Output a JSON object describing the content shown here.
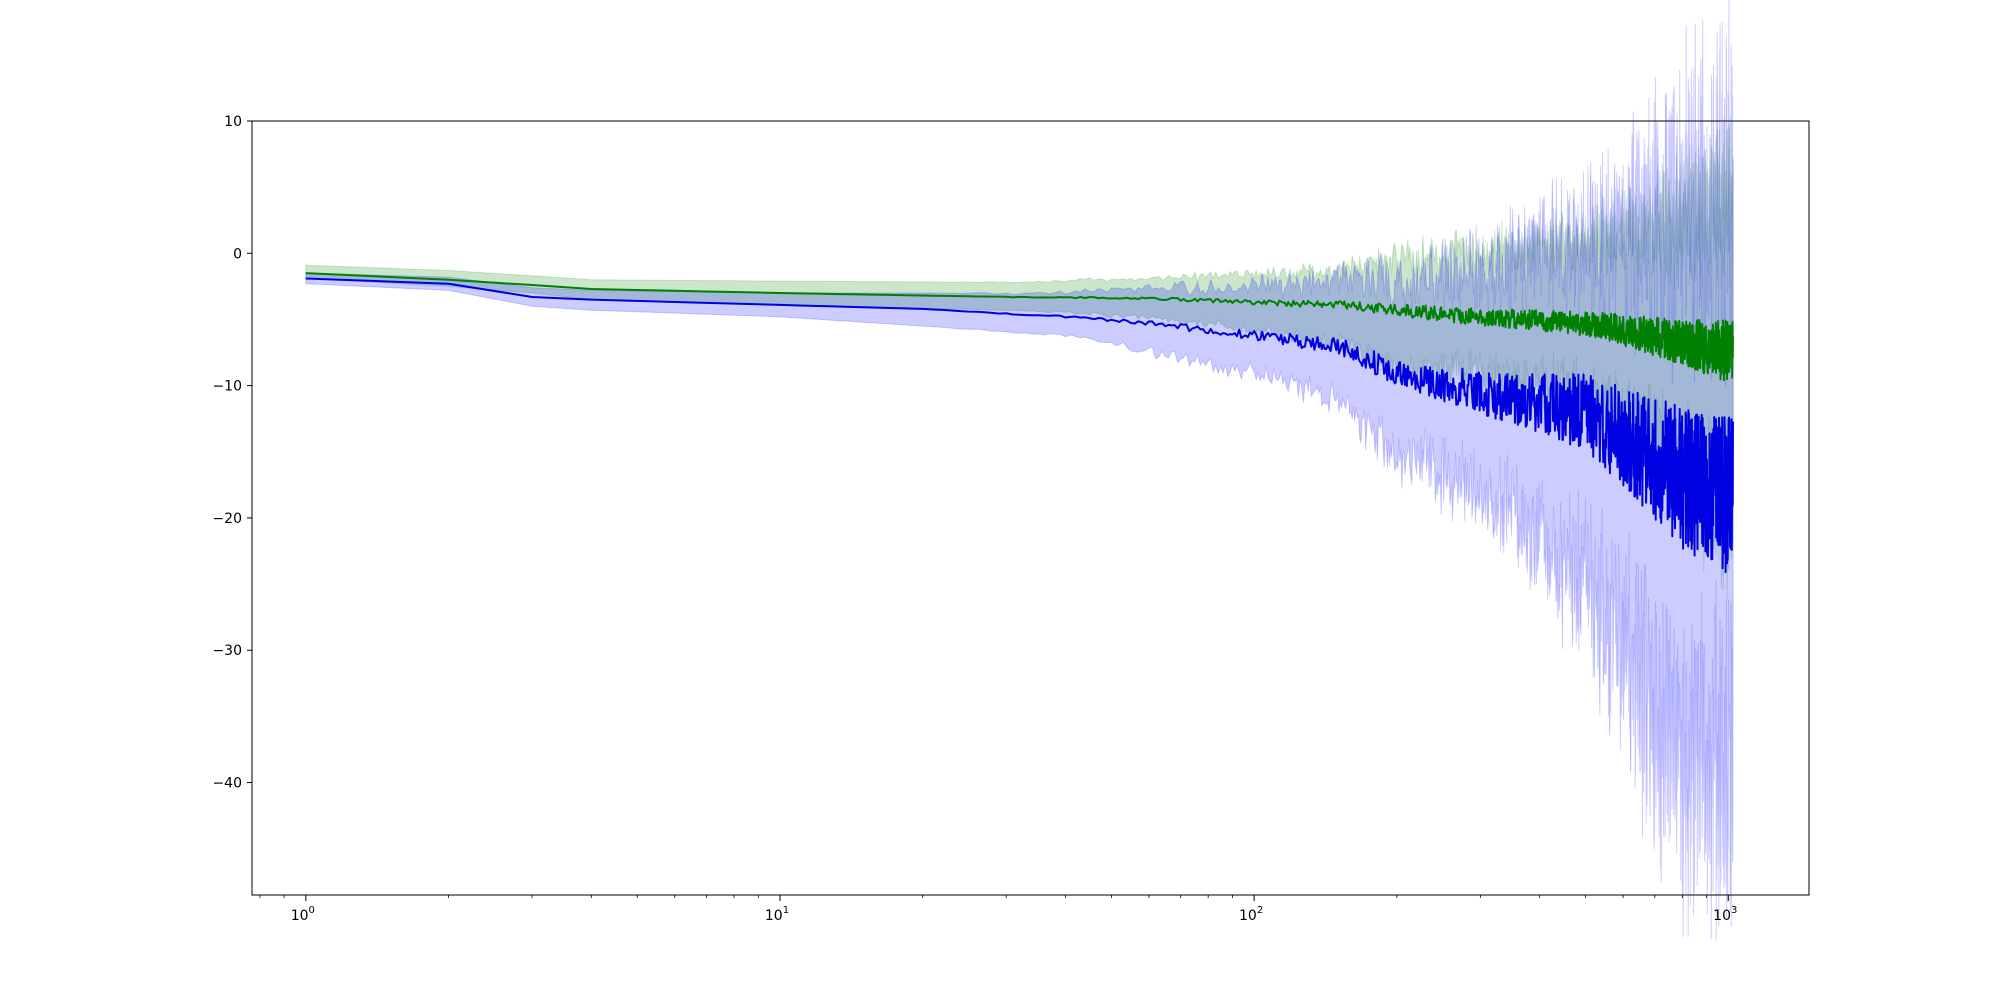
{
  "chart_data": {
    "type": "line",
    "title": "",
    "xlabel": "",
    "ylabel": "",
    "x_scale": "log",
    "xlim": [
      0.77,
      1480
    ],
    "ylim": [
      -48.5,
      10
    ],
    "grid": false,
    "x_ticks": [
      {
        "value": 1,
        "base": "10",
        "exp": "0"
      },
      {
        "value": 10,
        "base": "10",
        "exp": "1"
      },
      {
        "value": 100,
        "base": "10",
        "exp": "2"
      },
      {
        "value": 1000,
        "base": "10",
        "exp": "3"
      }
    ],
    "y_ticks": [
      {
        "value": 10,
        "label": "10"
      },
      {
        "value": 0,
        "label": "0"
      },
      {
        "value": -10,
        "label": "−10"
      },
      {
        "value": -20,
        "label": "−20"
      },
      {
        "value": -30,
        "label": "−30"
      },
      {
        "value": -40,
        "label": "−40"
      }
    ],
    "x_range": [
      1,
      1024
    ],
    "series": [
      {
        "color": "#008000",
        "band_color": "#008000",
        "anchors": [
          {
            "x": 1,
            "mean": -1.5,
            "lower": -1.9,
            "upper": -0.9
          },
          {
            "x": 2,
            "mean": -2.0,
            "lower": -2.5,
            "upper": -1.3
          },
          {
            "x": 3,
            "mean": -2.4,
            "lower": -3.0,
            "upper": -1.7
          },
          {
            "x": 4,
            "mean": -2.7,
            "lower": -3.5,
            "upper": -2.0
          },
          {
            "x": 10,
            "mean": -3.0,
            "lower": -3.9,
            "upper": -2.1
          },
          {
            "x": 30,
            "mean": -3.3,
            "lower": -4.3,
            "upper": -2.2
          },
          {
            "x": 60,
            "mean": -3.4,
            "lower": -4.8,
            "upper": -1.9
          },
          {
            "x": 100,
            "mean": -3.7,
            "lower": -5.8,
            "upper": -1.6
          },
          {
            "x": 150,
            "mean": -3.9,
            "lower": -6.8,
            "upper": -1.2
          },
          {
            "x": 200,
            "mean": -4.3,
            "lower": -8.5,
            "upper": -0.5
          },
          {
            "x": 300,
            "mean": -4.8,
            "lower": -9.0,
            "upper": 0.3
          },
          {
            "x": 500,
            "mean": -5.3,
            "lower": -10.5,
            "upper": 1.0
          },
          {
            "x": 700,
            "mean": -6.3,
            "lower": -14.0,
            "upper": 2.0
          },
          {
            "x": 1024,
            "mean": -7.5,
            "lower": -20.0,
            "upper": 4.0
          }
        ]
      },
      {
        "color": "#0000e0",
        "band_color": "#0000ff",
        "anchors": [
          {
            "x": 1,
            "mean": -1.9,
            "lower": -2.3,
            "upper": -1.5
          },
          {
            "x": 2,
            "mean": -2.3,
            "lower": -2.8,
            "upper": -1.8
          },
          {
            "x": 3,
            "mean": -3.3,
            "lower": -4.0,
            "upper": -2.6
          },
          {
            "x": 4,
            "mean": -3.5,
            "lower": -4.3,
            "upper": -2.8
          },
          {
            "x": 10,
            "mean": -3.9,
            "lower": -4.8,
            "upper": -3.0
          },
          {
            "x": 20,
            "mean": -4.2,
            "lower": -5.5,
            "upper": -3.0
          },
          {
            "x": 40,
            "mean": -4.8,
            "lower": -6.2,
            "upper": -3.0
          },
          {
            "x": 60,
            "mean": -5.3,
            "lower": -7.5,
            "upper": -2.6
          },
          {
            "x": 100,
            "mean": -6.2,
            "lower": -9.0,
            "upper": -2.5
          },
          {
            "x": 150,
            "mean": -7.0,
            "lower": -11.0,
            "upper": -2.0
          },
          {
            "x": 200,
            "mean": -9.0,
            "lower": -15.0,
            "upper": -2.0
          },
          {
            "x": 300,
            "mean": -10.5,
            "lower": -18.0,
            "upper": -1.0
          },
          {
            "x": 500,
            "mean": -12.0,
            "lower": -25.0,
            "upper": 0.5
          },
          {
            "x": 700,
            "mean": -15.5,
            "lower": -35.0,
            "upper": 2.5
          },
          {
            "x": 800,
            "mean": -17.0,
            "lower": -38.0,
            "upper": 3.5
          },
          {
            "x": 1024,
            "mean": -18.5,
            "lower": -40.0,
            "upper": 4.0
          }
        ]
      }
    ]
  }
}
